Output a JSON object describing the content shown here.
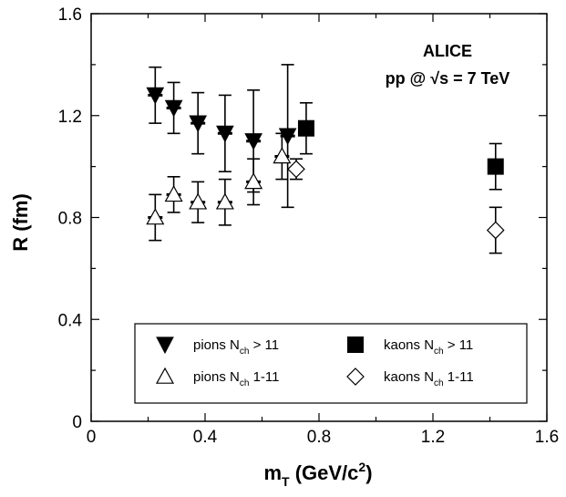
{
  "chart_data": {
    "type": "scatter",
    "xlabel": "m",
    "xlabel_sub": "T",
    "xlabel_unit": " (GeV/c",
    "xlabel_sup": "2",
    "xlabel_close": ")",
    "ylabel": "R (fm)",
    "xlim": [
      0,
      1.6
    ],
    "ylim": [
      0,
      1.6
    ],
    "x_ticks": [
      "0",
      "0.4",
      "0.8",
      "1.2",
      "1.6"
    ],
    "y_ticks": [
      "0",
      "0.4",
      "0.8",
      "1.2",
      "1.6"
    ],
    "annotation": [
      "ALICE",
      "pp @ √s = 7 TeV"
    ],
    "legend_position": "bottom-center",
    "series": [
      {
        "name": "pions N_ch > 11",
        "label_main": "pions N",
        "label_sub": "ch",
        "label_tail": " > 11",
        "marker": "triangle-down-filled",
        "points": [
          {
            "x": 0.225,
            "y": 1.28,
            "err": 0.11
          },
          {
            "x": 0.29,
            "y": 1.23,
            "err": 0.1
          },
          {
            "x": 0.375,
            "y": 1.17,
            "err": 0.12
          },
          {
            "x": 0.47,
            "y": 1.13,
            "err": 0.15
          },
          {
            "x": 0.57,
            "y": 1.1,
            "err": 0.2
          },
          {
            "x": 0.69,
            "y": 1.12,
            "err": 0.28
          }
        ]
      },
      {
        "name": "pions N_ch 1-11",
        "label_main": "pions N",
        "label_sub": "ch",
        "label_tail": " 1-11",
        "marker": "triangle-up-open",
        "points": [
          {
            "x": 0.225,
            "y": 0.8,
            "err": 0.09
          },
          {
            "x": 0.29,
            "y": 0.89,
            "err": 0.07
          },
          {
            "x": 0.375,
            "y": 0.86,
            "err": 0.08
          },
          {
            "x": 0.47,
            "y": 0.86,
            "err": 0.09
          },
          {
            "x": 0.57,
            "y": 0.94,
            "err": 0.09
          },
          {
            "x": 0.67,
            "y": 1.04,
            "err": 0.09
          }
        ]
      },
      {
        "name": "kaons N_ch > 11",
        "label_main": "kaons N",
        "label_sub": "ch",
        "label_tail": " > 11",
        "marker": "square-filled",
        "points": [
          {
            "x": 0.755,
            "y": 1.15,
            "err": 0.1
          },
          {
            "x": 1.42,
            "y": 1.0,
            "err": 0.09
          }
        ]
      },
      {
        "name": "kaons N_ch 1-11",
        "label_main": "kaons N",
        "label_sub": "ch",
        "label_tail": " 1-11",
        "marker": "diamond-open",
        "points": [
          {
            "x": 0.72,
            "y": 0.99,
            "err": 0.04
          },
          {
            "x": 1.42,
            "y": 0.75,
            "err": 0.09
          }
        ]
      }
    ]
  }
}
